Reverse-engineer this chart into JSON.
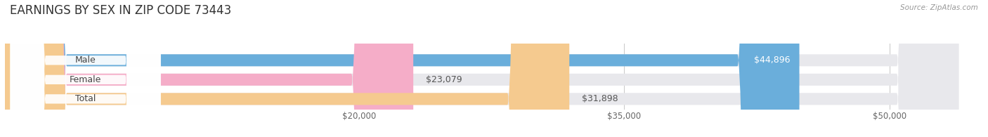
{
  "title": "EARNINGS BY SEX IN ZIP CODE 73443",
  "source": "Source: ZipAtlas.com",
  "categories": [
    "Male",
    "Female",
    "Total"
  ],
  "values": [
    44896,
    23079,
    31898
  ],
  "bar_colors": [
    "#6aaedb",
    "#f5adc8",
    "#f5ca8f"
  ],
  "bar_bg_color": "#e8e8ec",
  "label_bg_colors": [
    "#dce8f0",
    "#fce8f0",
    "#fdf2e0"
  ],
  "label_text_color": "#444444",
  "value_label_color_inside": "#ffffff",
  "value_label_color_outside": "#555555",
  "xmin": 0,
  "xdata_min": 20000,
  "xdata_max": 50000,
  "xticks": [
    20000,
    35000,
    50000
  ],
  "xtick_labels": [
    "$20,000",
    "$35,000",
    "$50,000"
  ],
  "title_fontsize": 12,
  "bar_height": 0.62,
  "figsize": [
    14.06,
    1.95
  ],
  "dpi": 100,
  "background_color": "#ffffff"
}
